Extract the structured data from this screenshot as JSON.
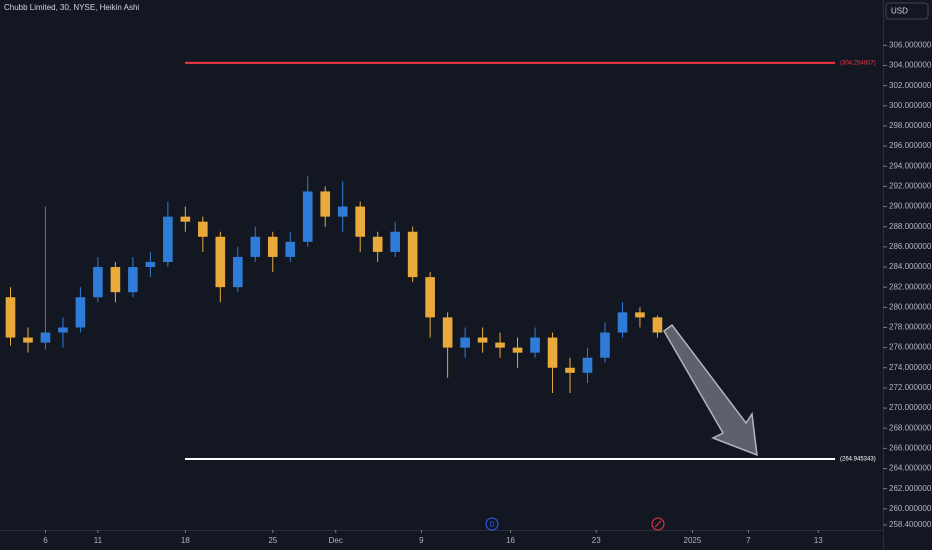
{
  "chart_data": {
    "type": "candlestick",
    "title": "Chubb Limited, 30, NYSE, Heikin Ashi",
    "currency": "USD",
    "x": [
      -2,
      -1,
      0,
      1,
      2,
      3,
      4,
      5,
      6,
      7,
      8,
      9,
      10,
      11,
      12,
      13,
      14,
      15,
      16,
      17,
      18,
      19,
      20,
      21,
      22,
      23,
      24,
      25,
      26,
      27,
      28,
      29,
      30,
      31,
      32,
      33,
      34,
      35
    ],
    "open": [
      281,
      277,
      276.5,
      277.5,
      278,
      281,
      284,
      281.5,
      284,
      284.5,
      289,
      288.5,
      287,
      282,
      285,
      287,
      285,
      286.5,
      291.5,
      289,
      290,
      287,
      285.5,
      287.5,
      283,
      279,
      276,
      277,
      276.5,
      276,
      275.5,
      277,
      274,
      273.5,
      275,
      277.5,
      279.5,
      279
    ],
    "high": [
      282,
      278,
      290,
      279,
      282,
      285,
      284.5,
      285,
      285.5,
      290.5,
      290,
      289,
      287.5,
      286,
      288,
      287.5,
      287.5,
      293,
      292,
      292.5,
      290.5,
      287.5,
      288.5,
      288,
      283.5,
      279.5,
      278,
      278,
      277.5,
      277,
      278,
      277.5,
      275,
      276,
      278.5,
      280.5,
      280,
      279.2
    ],
    "low": [
      276.2,
      275.5,
      275.8,
      276,
      277.5,
      280.5,
      280.5,
      281,
      283,
      284,
      287.5,
      285.5,
      280.5,
      281.5,
      284.5,
      283.5,
      284.5,
      286,
      288,
      287.5,
      285.5,
      284.5,
      285,
      282.5,
      277,
      273,
      275,
      275.5,
      275,
      274,
      275,
      271.5,
      271.5,
      272.5,
      274.5,
      277,
      278,
      277
    ],
    "close": [
      277,
      276.5,
      277.5,
      278,
      281,
      284,
      281.5,
      284,
      284.5,
      289,
      288.5,
      287,
      282,
      285,
      287,
      285,
      286.5,
      291.5,
      289,
      290,
      287,
      285.5,
      287.5,
      283,
      279,
      276,
      277,
      276.5,
      276,
      275.5,
      277,
      274,
      273.5,
      275,
      277.5,
      279.5,
      279,
      277.5
    ],
    "up_color": "#2f7bd8",
    "down_color": "#e9a93b",
    "xlim": [
      -2.6,
      47.9
    ],
    "xticks": [
      {
        "value": 0,
        "label": "6"
      },
      {
        "value": 3,
        "label": "11"
      },
      {
        "value": 8,
        "label": "18"
      },
      {
        "value": 13,
        "label": "25"
      },
      {
        "value": 16.6,
        "label": "Dec"
      },
      {
        "value": 21.5,
        "label": "9"
      },
      {
        "value": 26.6,
        "label": "16"
      },
      {
        "value": 31.5,
        "label": "23"
      },
      {
        "value": 37,
        "label": "2025"
      },
      {
        "value": 40.2,
        "label": "7"
      },
      {
        "value": 44.2,
        "label": "13"
      }
    ],
    "ylim": [
      257.9,
      310.5
    ],
    "yticks": [
      {
        "value": 258.4,
        "label": "258.400000"
      },
      {
        "value": 260,
        "label": "260.000000"
      },
      {
        "value": 262,
        "label": "262.000000"
      },
      {
        "value": 264,
        "label": "264.000000"
      },
      {
        "value": 266,
        "label": "266.000000"
      },
      {
        "value": 268,
        "label": "268.000000"
      },
      {
        "value": 270,
        "label": "270.000000"
      },
      {
        "value": 272,
        "label": "272.000000"
      },
      {
        "value": 274,
        "label": "274.000000"
      },
      {
        "value": 276,
        "label": "276.000000"
      },
      {
        "value": 278,
        "label": "278.000000"
      },
      {
        "value": 280,
        "label": "280.000000"
      },
      {
        "value": 282,
        "label": "282.000000"
      },
      {
        "value": 284,
        "label": "284.000000"
      },
      {
        "value": 286,
        "label": "286.000000"
      },
      {
        "value": 288,
        "label": "288.000000"
      },
      {
        "value": 290,
        "label": "290.000000"
      },
      {
        "value": 292,
        "label": "292.000000"
      },
      {
        "value": 294,
        "label": "294.000000"
      },
      {
        "value": 296,
        "label": "296.000000"
      },
      {
        "value": 298,
        "label": "298.000000"
      },
      {
        "value": 300,
        "label": "300.000000"
      },
      {
        "value": 302,
        "label": "302.000000"
      },
      {
        "value": 304,
        "label": "304.000000"
      },
      {
        "value": 306,
        "label": "306.000000"
      }
    ],
    "levels": [
      {
        "value": 304.254807,
        "label": "(304.254807)",
        "color": "#f23645"
      },
      {
        "value": 264.945343,
        "label": "(264.945343)",
        "color": "#ffffff"
      }
    ],
    "event_label": "D"
  }
}
